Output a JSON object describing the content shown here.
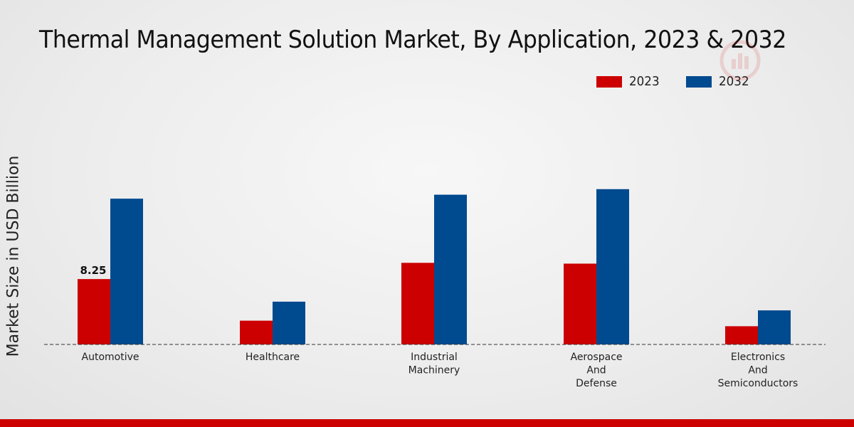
{
  "chart_data": {
    "type": "bar",
    "title": "Thermal Management Solution Market, By Application, 2023 & 2032",
    "ylabel": "Market Size in USD Billion",
    "xlabel": "",
    "categories": [
      "Automotive",
      "Healthcare",
      "Industrial Machinery",
      "Aerospace And Defense",
      "Electronics And Semiconductors"
    ],
    "category_lines": [
      [
        "Automotive"
      ],
      [
        "Healthcare"
      ],
      [
        "Industrial",
        "Machinery"
      ],
      [
        "Aerospace",
        "And",
        "Defense"
      ],
      [
        "Electronics",
        "And",
        "Semiconductors"
      ]
    ],
    "series": [
      {
        "name": "2023",
        "color": "#cc0000",
        "values": [
          8.25,
          3.0,
          10.3,
          10.2,
          2.3
        ]
      },
      {
        "name": "2032",
        "color": "#004a8f",
        "values": [
          18.4,
          5.4,
          18.9,
          19.6,
          4.3
        ]
      }
    ],
    "data_labels": [
      {
        "series": 0,
        "index": 0,
        "text": "8.25"
      }
    ],
    "ylim": [
      0,
      30
    ],
    "legend_position": "top-right",
    "grid": false
  }
}
